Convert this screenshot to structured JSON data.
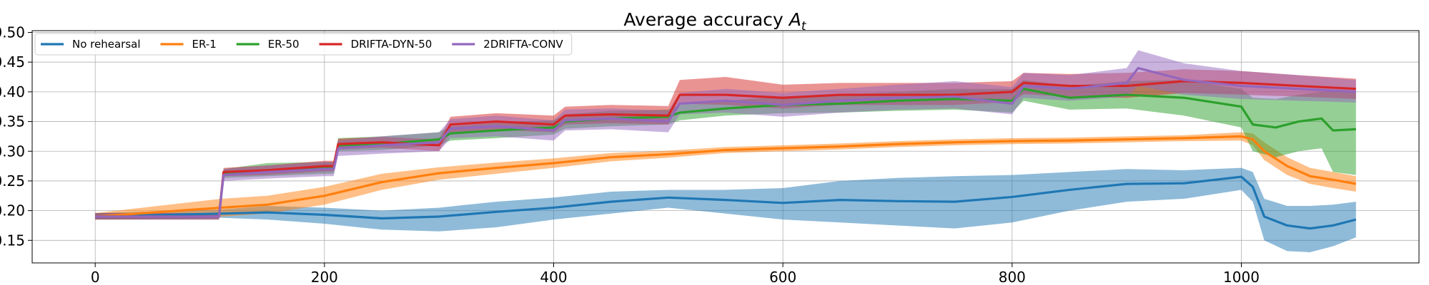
{
  "chart_data": {
    "type": "line",
    "title": "Average accuracy",
    "title_subscript_var": "A",
    "title_subscript": "t",
    "xlabel": "",
    "ylabel": "",
    "xlim": [
      -55,
      1155
    ],
    "ylim": [
      0.112,
      0.503
    ],
    "xticks": [
      0,
      200,
      400,
      600,
      800,
      1000
    ],
    "yticks": [
      0.15,
      0.2,
      0.25,
      0.3,
      0.35,
      0.4,
      0.45,
      0.5
    ],
    "ytick_labels": [
      "0.15",
      "0.20",
      "0.25",
      "0.30",
      "0.35",
      "0.40",
      "0.45",
      "0.50"
    ],
    "grid": true,
    "legend_position": "top-left",
    "series": [
      {
        "name": "No rehearsal",
        "color": "#1f77b4",
        "x": [
          0,
          110,
          150,
          200,
          250,
          300,
          350,
          400,
          450,
          500,
          550,
          600,
          650,
          700,
          750,
          800,
          850,
          900,
          950,
          1000,
          1010,
          1020,
          1040,
          1060,
          1080,
          1100
        ],
        "y": [
          0.19,
          0.195,
          0.197,
          0.193,
          0.187,
          0.19,
          0.198,
          0.205,
          0.215,
          0.222,
          0.218,
          0.213,
          0.218,
          0.216,
          0.215,
          0.223,
          0.235,
          0.245,
          0.246,
          0.257,
          0.24,
          0.19,
          0.175,
          0.17,
          0.175,
          0.185
        ],
        "lower": [
          0.185,
          0.188,
          0.185,
          0.178,
          0.168,
          0.165,
          0.172,
          0.185,
          0.195,
          0.205,
          0.195,
          0.185,
          0.18,
          0.175,
          0.17,
          0.18,
          0.2,
          0.215,
          0.22,
          0.235,
          0.215,
          0.15,
          0.132,
          0.13,
          0.14,
          0.155
        ],
        "upper": [
          0.196,
          0.202,
          0.208,
          0.205,
          0.2,
          0.205,
          0.215,
          0.222,
          0.232,
          0.235,
          0.235,
          0.238,
          0.25,
          0.255,
          0.258,
          0.26,
          0.265,
          0.27,
          0.268,
          0.272,
          0.265,
          0.22,
          0.208,
          0.208,
          0.21,
          0.215
        ]
      },
      {
        "name": "ER-1",
        "color": "#ff7f0e",
        "x": [
          0,
          110,
          150,
          200,
          250,
          300,
          350,
          400,
          450,
          500,
          550,
          600,
          650,
          700,
          750,
          800,
          850,
          900,
          950,
          1000,
          1010,
          1020,
          1040,
          1060,
          1080,
          1100
        ],
        "y": [
          0.19,
          0.205,
          0.21,
          0.225,
          0.248,
          0.263,
          0.272,
          0.28,
          0.29,
          0.295,
          0.302,
          0.305,
          0.308,
          0.312,
          0.315,
          0.317,
          0.318,
          0.32,
          0.322,
          0.325,
          0.32,
          0.3,
          0.275,
          0.258,
          0.252,
          0.245
        ],
        "lower": [
          0.185,
          0.19,
          0.195,
          0.21,
          0.235,
          0.252,
          0.262,
          0.272,
          0.283,
          0.289,
          0.297,
          0.3,
          0.303,
          0.307,
          0.31,
          0.312,
          0.313,
          0.315,
          0.317,
          0.318,
          0.31,
          0.285,
          0.26,
          0.245,
          0.238,
          0.232
        ],
        "upper": [
          0.196,
          0.22,
          0.225,
          0.24,
          0.262,
          0.273,
          0.281,
          0.288,
          0.297,
          0.301,
          0.307,
          0.31,
          0.313,
          0.317,
          0.32,
          0.322,
          0.323,
          0.325,
          0.327,
          0.332,
          0.33,
          0.315,
          0.29,
          0.272,
          0.265,
          0.258
        ]
      },
      {
        "name": "ER-50",
        "color": "#2ca02c",
        "x": [
          0,
          108,
          112,
          150,
          200,
          208,
          212,
          250,
          300,
          310,
          350,
          400,
          410,
          450,
          500,
          510,
          550,
          600,
          650,
          700,
          750,
          800,
          810,
          850,
          900,
          950,
          1000,
          1010,
          1030,
          1050,
          1070,
          1080,
          1100
        ],
        "y": [
          0.19,
          0.19,
          0.262,
          0.268,
          0.272,
          0.272,
          0.31,
          0.312,
          0.32,
          0.33,
          0.335,
          0.34,
          0.35,
          0.355,
          0.358,
          0.365,
          0.372,
          0.378,
          0.38,
          0.385,
          0.388,
          0.385,
          0.405,
          0.39,
          0.395,
          0.39,
          0.375,
          0.345,
          0.34,
          0.35,
          0.355,
          0.335,
          0.337
        ],
        "lower": [
          0.185,
          0.185,
          0.255,
          0.258,
          0.262,
          0.262,
          0.3,
          0.302,
          0.31,
          0.318,
          0.322,
          0.328,
          0.338,
          0.342,
          0.345,
          0.352,
          0.36,
          0.364,
          0.365,
          0.368,
          0.37,
          0.365,
          0.385,
          0.37,
          0.372,
          0.36,
          0.34,
          0.3,
          0.29,
          0.3,
          0.305,
          0.265,
          0.26
        ],
        "upper": [
          0.196,
          0.196,
          0.27,
          0.28,
          0.282,
          0.282,
          0.322,
          0.325,
          0.332,
          0.342,
          0.348,
          0.352,
          0.362,
          0.368,
          0.37,
          0.378,
          0.385,
          0.392,
          0.395,
          0.4,
          0.405,
          0.405,
          0.42,
          0.41,
          0.418,
          0.42,
          0.405,
          0.39,
          0.388,
          0.395,
          0.4,
          0.4,
          0.4
        ]
      },
      {
        "name": "DRIFTA-DYN-50",
        "color": "#d62728",
        "x": [
          0,
          108,
          112,
          150,
          200,
          208,
          212,
          250,
          300,
          310,
          350,
          400,
          410,
          450,
          500,
          510,
          550,
          600,
          650,
          700,
          750,
          800,
          810,
          850,
          900,
          950,
          1000,
          1050,
          1100
        ],
        "y": [
          0.19,
          0.19,
          0.265,
          0.268,
          0.275,
          0.275,
          0.312,
          0.315,
          0.31,
          0.345,
          0.35,
          0.345,
          0.36,
          0.362,
          0.36,
          0.395,
          0.395,
          0.39,
          0.395,
          0.395,
          0.395,
          0.4,
          0.415,
          0.41,
          0.41,
          0.418,
          0.415,
          0.41,
          0.405
        ],
        "lower": [
          0.185,
          0.185,
          0.258,
          0.26,
          0.266,
          0.266,
          0.303,
          0.306,
          0.3,
          0.332,
          0.336,
          0.332,
          0.345,
          0.347,
          0.345,
          0.38,
          0.378,
          0.372,
          0.378,
          0.378,
          0.378,
          0.383,
          0.396,
          0.392,
          0.39,
          0.398,
          0.395,
          0.392,
          0.388
        ],
        "upper": [
          0.196,
          0.196,
          0.272,
          0.276,
          0.284,
          0.284,
          0.321,
          0.324,
          0.32,
          0.358,
          0.364,
          0.36,
          0.375,
          0.378,
          0.376,
          0.42,
          0.425,
          0.412,
          0.415,
          0.415,
          0.415,
          0.418,
          0.432,
          0.43,
          0.432,
          0.438,
          0.435,
          0.428,
          0.422
        ]
      },
      {
        "name": "2DRIFTA-CONV",
        "color": "#9467bd",
        "x": [
          0,
          108,
          112,
          150,
          200,
          208,
          212,
          250,
          300,
          310,
          350,
          400,
          410,
          450,
          500,
          510,
          550,
          600,
          650,
          700,
          750,
          800,
          810,
          850,
          900,
          910,
          950,
          1000,
          1050,
          1100
        ],
        "y": [
          0.19,
          0.19,
          0.26,
          0.265,
          0.27,
          0.27,
          0.305,
          0.31,
          0.315,
          0.338,
          0.342,
          0.335,
          0.352,
          0.355,
          0.35,
          0.38,
          0.385,
          0.378,
          0.385,
          0.39,
          0.392,
          0.38,
          0.41,
          0.405,
          0.415,
          0.44,
          0.42,
          0.41,
          0.405,
          0.4
        ],
        "lower": [
          0.185,
          0.185,
          0.25,
          0.254,
          0.258,
          0.258,
          0.292,
          0.296,
          0.3,
          0.322,
          0.325,
          0.318,
          0.335,
          0.337,
          0.332,
          0.362,
          0.365,
          0.358,
          0.365,
          0.37,
          0.372,
          0.362,
          0.39,
          0.385,
          0.392,
          0.41,
          0.395,
          0.388,
          0.385,
          0.382
        ],
        "upper": [
          0.196,
          0.196,
          0.27,
          0.276,
          0.282,
          0.282,
          0.318,
          0.325,
          0.332,
          0.354,
          0.36,
          0.352,
          0.37,
          0.372,
          0.368,
          0.398,
          0.405,
          0.398,
          0.405,
          0.412,
          0.418,
          0.408,
          0.432,
          0.428,
          0.44,
          0.47,
          0.448,
          0.435,
          0.428,
          0.42
        ]
      }
    ]
  }
}
